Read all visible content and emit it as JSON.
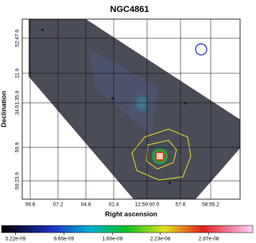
{
  "chart_data": {
    "type": "image",
    "title": "NGC4861",
    "xlabel": "Right ascension",
    "ylabel": "Declination",
    "xticks": [
      "09.6",
      "07.2",
      "04.8",
      "02.4",
      "12:59:00.0",
      "57.6",
      "58:55.2"
    ],
    "yticks": [
      "52:47.9",
      "11.9",
      "34:51:35.9",
      "59.9",
      "50:23.9"
    ],
    "colorbar": {
      "lim": [
        1.4e-09,
        3.45e-08
      ],
      "ticks": [
        {
          "value": 3.22e-09,
          "label": "3.22e-09"
        },
        {
          "value": 9.6e-09,
          "label": "9.60e-09"
        },
        {
          "value": 1.6e-08,
          "label": "1.60e-08"
        },
        {
          "value": 2.23e-08,
          "label": "2.23e-08"
        },
        {
          "value": 2.87e-08,
          "label": "2.87e-08"
        }
      ]
    },
    "grid": true
  }
}
